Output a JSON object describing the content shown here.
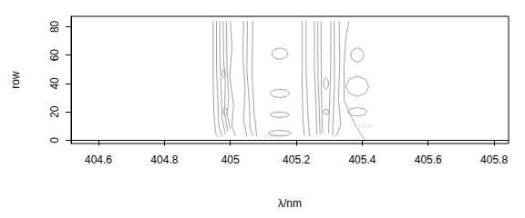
{
  "chart_data": {
    "type": "contour",
    "x_label": "λ/nm",
    "y_label": "row",
    "xlim": [
      404.517,
      405.844
    ],
    "ylim": [
      -2.3,
      87.3
    ],
    "xticks": [
      404.6,
      404.8,
      405.0,
      405.2,
      405.4,
      405.6,
      405.8
    ],
    "yticks": [
      0,
      20,
      40,
      60,
      80
    ],
    "color": "#999999",
    "contours": [
      {
        "points": [
          [
            404.948,
            84
          ],
          [
            404.948,
            40
          ],
          [
            404.95,
            20
          ],
          [
            404.955,
            5
          ],
          [
            404.965,
            2
          ]
        ]
      },
      {
        "points": [
          [
            404.958,
            84
          ],
          [
            404.958,
            50
          ],
          [
            404.962,
            30
          ],
          [
            404.965,
            10
          ],
          [
            404.975,
            3
          ]
        ]
      },
      {
        "points": [
          [
            404.968,
            84
          ],
          [
            404.968,
            60
          ],
          [
            404.972,
            35
          ],
          [
            404.975,
            15
          ],
          [
            404.985,
            4
          ]
        ]
      },
      {
        "points": [
          [
            404.978,
            84
          ],
          [
            404.98,
            55
          ],
          [
            404.985,
            40
          ],
          [
            404.982,
            20
          ],
          [
            404.992,
            6
          ]
        ]
      },
      {
        "points": [
          [
            404.988,
            84
          ],
          [
            404.99,
            50
          ],
          [
            404.995,
            30
          ],
          [
            404.99,
            18
          ],
          [
            405.0,
            8
          ]
        ]
      },
      {
        "points": [
          [
            405.0,
            84
          ],
          [
            405.005,
            65
          ],
          [
            404.998,
            45
          ],
          [
            405.01,
            25
          ],
          [
            405.005,
            10
          ],
          [
            405.015,
            3
          ]
        ]
      },
      {
        "points": [
          [
            405.04,
            84
          ],
          [
            405.038,
            60
          ],
          [
            405.045,
            35
          ],
          [
            405.04,
            15
          ],
          [
            405.05,
            3
          ]
        ]
      },
      {
        "points": [
          [
            405.052,
            84
          ],
          [
            405.05,
            50
          ],
          [
            405.058,
            25
          ],
          [
            405.06,
            8
          ],
          [
            405.07,
            3
          ]
        ]
      },
      {
        "points": [
          [
            405.068,
            84
          ],
          [
            405.066,
            45
          ],
          [
            405.072,
            20
          ],
          [
            405.08,
            3
          ]
        ]
      },
      {
        "points": [
          [
            404.991,
            20
          ],
          [
            404.989,
            22.1
          ],
          [
            404.985,
            23
          ],
          [
            404.981,
            22.1
          ],
          [
            404.979,
            20
          ],
          [
            404.981,
            17.9
          ],
          [
            404.985,
            17
          ],
          [
            404.989,
            17.9
          ],
          [
            404.991,
            20
          ]
        ]
      },
      {
        "points": [
          [
            404.985,
            47
          ],
          [
            404.984,
            49.1
          ],
          [
            404.98,
            50
          ],
          [
            404.977,
            49.1
          ],
          [
            404.975,
            47
          ],
          [
            404.977,
            44.9
          ],
          [
            404.98,
            44
          ],
          [
            404.984,
            44.9
          ],
          [
            404.985,
            47
          ]
        ]
      },
      {
        "points": [
          [
            405.175,
            61
          ],
          [
            405.168,
            63.8
          ],
          [
            405.15,
            65
          ],
          [
            405.132,
            63.8
          ],
          [
            405.125,
            61
          ],
          [
            405.132,
            58.2
          ],
          [
            405.15,
            57
          ],
          [
            405.168,
            58.2
          ],
          [
            405.175,
            61
          ]
        ]
      },
      {
        "points": [
          [
            405.18,
            33
          ],
          [
            405.171,
            35.1
          ],
          [
            405.15,
            36
          ],
          [
            405.129,
            35.1
          ],
          [
            405.12,
            33
          ],
          [
            405.129,
            30.9
          ],
          [
            405.15,
            30
          ],
          [
            405.171,
            30.9
          ],
          [
            405.18,
            33
          ]
        ]
      },
      {
        "points": [
          [
            405.18,
            18
          ],
          [
            405.171,
            19.4
          ],
          [
            405.15,
            20
          ],
          [
            405.129,
            19.4
          ],
          [
            405.12,
            18
          ],
          [
            405.129,
            16.6
          ],
          [
            405.15,
            16
          ],
          [
            405.171,
            16.6
          ],
          [
            405.18,
            18
          ]
        ]
      },
      {
        "points": [
          [
            405.185,
            5
          ],
          [
            405.175,
            6.4
          ],
          [
            405.15,
            7
          ],
          [
            405.125,
            6.4
          ],
          [
            405.115,
            5
          ],
          [
            405.125,
            3.6
          ],
          [
            405.15,
            3
          ],
          [
            405.175,
            3.6
          ],
          [
            405.185,
            5
          ]
        ]
      },
      {
        "points": [
          [
            405.218,
            84
          ],
          [
            405.218,
            40
          ],
          [
            405.22,
            15
          ],
          [
            405.225,
            3
          ]
        ]
      },
      {
        "points": [
          [
            405.23,
            84
          ],
          [
            405.23,
            50
          ],
          [
            405.235,
            20
          ],
          [
            405.24,
            3
          ]
        ]
      },
      {
        "points": [
          [
            405.255,
            84
          ],
          [
            405.255,
            50
          ],
          [
            405.26,
            25
          ],
          [
            405.262,
            4
          ]
        ]
      },
      {
        "points": [
          [
            405.265,
            84
          ],
          [
            405.266,
            45
          ],
          [
            405.27,
            20
          ],
          [
            405.272,
            4
          ]
        ]
      },
      {
        "points": [
          [
            405.275,
            84
          ],
          [
            405.276,
            40
          ],
          [
            405.278,
            15
          ],
          [
            405.28,
            5
          ]
        ]
      },
      {
        "points": [
          [
            405.298,
            40
          ],
          [
            405.296,
            42.8
          ],
          [
            405.29,
            44
          ],
          [
            405.284,
            42.8
          ],
          [
            405.282,
            40
          ],
          [
            405.284,
            37.2
          ],
          [
            405.29,
            36
          ],
          [
            405.296,
            37.2
          ],
          [
            405.298,
            40
          ]
        ]
      },
      {
        "points": [
          [
            405.298,
            20
          ],
          [
            405.296,
            21.4
          ],
          [
            405.29,
            22
          ],
          [
            405.284,
            21.4
          ],
          [
            405.282,
            20
          ],
          [
            405.284,
            18.6
          ],
          [
            405.29,
            18
          ],
          [
            405.296,
            18.6
          ],
          [
            405.298,
            20
          ]
        ]
      },
      {
        "points": [
          [
            405.305,
            84
          ],
          [
            405.304,
            45
          ],
          [
            405.3,
            20
          ],
          [
            405.298,
            5
          ]
        ]
      },
      {
        "points": [
          [
            405.315,
            84
          ],
          [
            405.316,
            40
          ],
          [
            405.312,
            15
          ],
          [
            405.31,
            3
          ]
        ]
      },
      {
        "points": [
          [
            405.33,
            84
          ],
          [
            405.332,
            55
          ],
          [
            405.328,
            30
          ],
          [
            405.335,
            10
          ],
          [
            405.32,
            3
          ]
        ]
      },
      {
        "points": [
          [
            405.36,
            84
          ],
          [
            405.35,
            72
          ],
          [
            405.345,
            50
          ],
          [
            405.345,
            28
          ],
          [
            405.38,
            10
          ],
          [
            405.4,
            3
          ],
          [
            405.41,
            0
          ]
        ]
      },
      {
        "points": [
          [
            405.405,
            60
          ],
          [
            405.399,
            63.5
          ],
          [
            405.385,
            65
          ],
          [
            405.371,
            63.5
          ],
          [
            405.365,
            60
          ],
          [
            405.371,
            56.5
          ],
          [
            405.385,
            55
          ],
          [
            405.399,
            56.5
          ],
          [
            405.405,
            60
          ]
        ]
      },
      {
        "points": [
          [
            405.42,
            38
          ],
          [
            405.41,
            42.9
          ],
          [
            405.385,
            45
          ],
          [
            405.361,
            42.9
          ],
          [
            405.35,
            38
          ],
          [
            405.361,
            33.1
          ],
          [
            405.385,
            31
          ],
          [
            405.41,
            33.1
          ],
          [
            405.42,
            38
          ]
        ]
      },
      {
        "points": [
          [
            405.415,
            20
          ],
          [
            405.406,
            22.1
          ],
          [
            405.385,
            23
          ],
          [
            405.364,
            22.1
          ],
          [
            405.355,
            20
          ],
          [
            405.364,
            17.9
          ],
          [
            405.385,
            17
          ],
          [
            405.406,
            17.9
          ],
          [
            405.415,
            20
          ]
        ]
      }
    ],
    "annotations": [
      {
        "text": "10000",
        "x": 405.13,
        "y": 3
      },
      {
        "text": "1000",
        "x": 405.41,
        "y": 10
      }
    ]
  }
}
